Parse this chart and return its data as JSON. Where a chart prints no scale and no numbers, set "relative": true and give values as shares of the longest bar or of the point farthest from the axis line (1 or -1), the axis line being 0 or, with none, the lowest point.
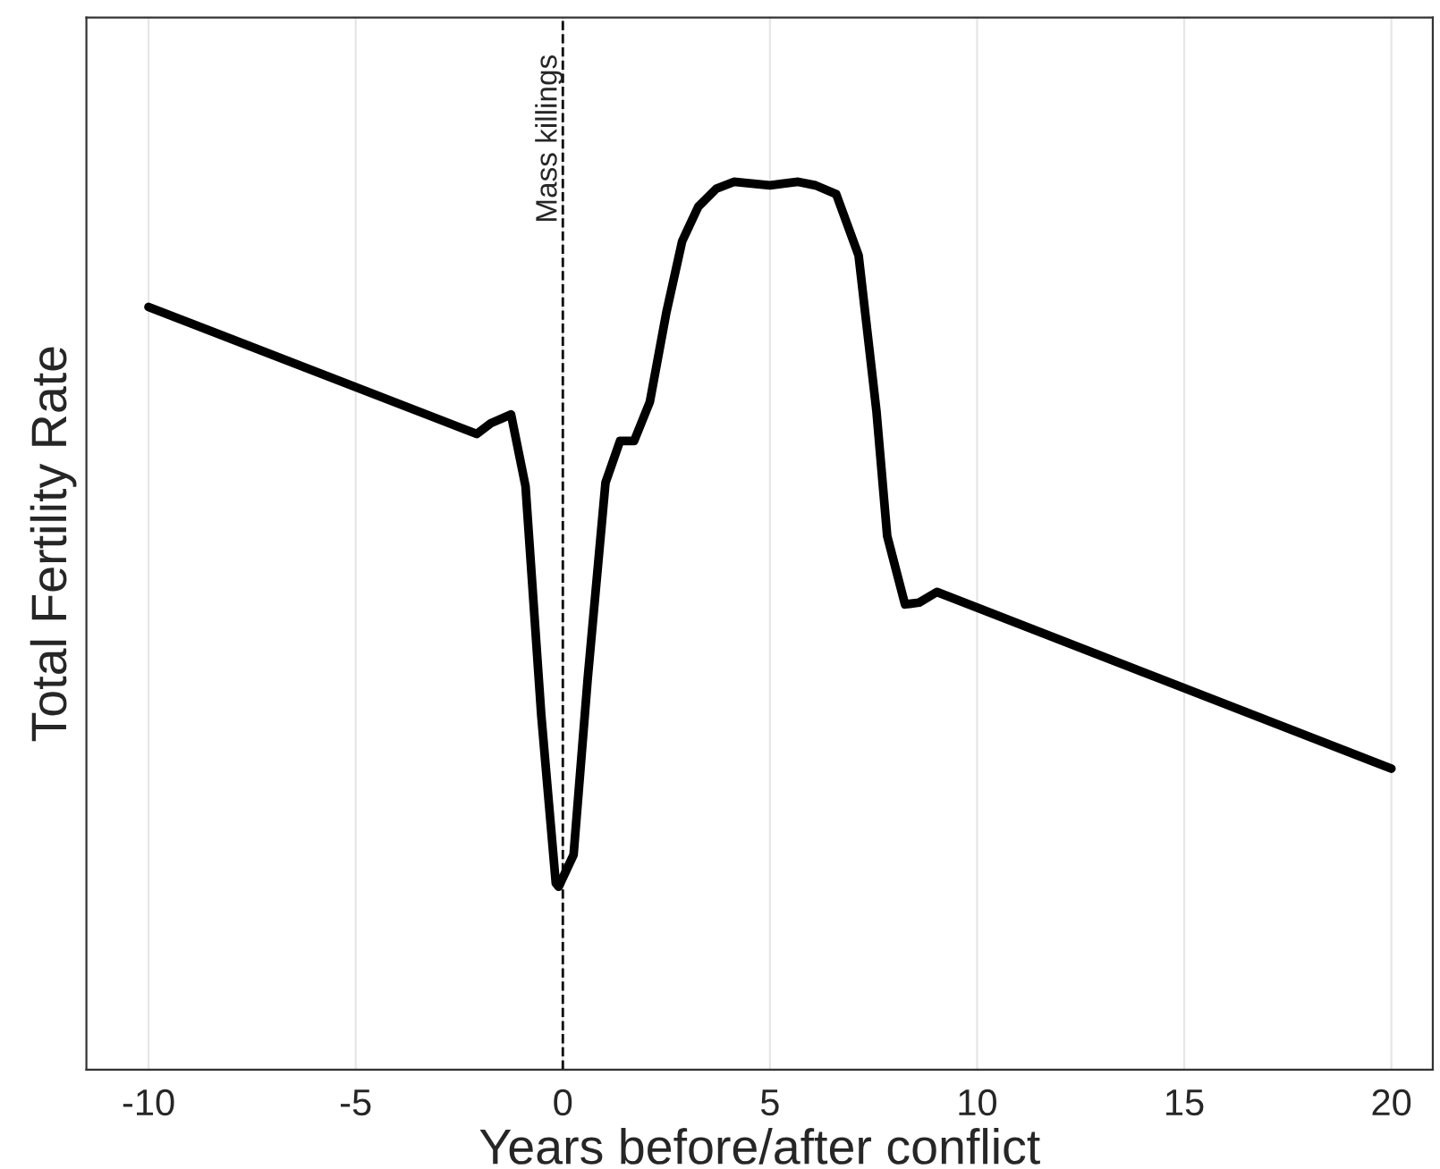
{
  "chart_data": {
    "type": "line",
    "relative": true,
    "xlabel": "Years before/after conflict",
    "ylabel": "Total Fertility Rate",
    "xlim": [
      -11.5,
      21
    ],
    "xticks": [
      -10,
      -5,
      0,
      5,
      10,
      15,
      20
    ],
    "grid": "x",
    "tick_labels": "x",
    "legend": false,
    "marker": "none",
    "line_style": "solid",
    "series": [
      {
        "color": "#000000",
        "x": [
          -10,
          -2.08,
          -1.74,
          -1.25,
          -0.9,
          -0.52,
          -0.17,
          -0.1,
          0.26,
          0.6,
          1.03,
          1.38,
          1.72,
          2.1,
          2.5,
          2.88,
          3.27,
          3.7,
          4.13,
          4.56,
          5.0,
          5.33,
          5.68,
          6.1,
          6.6,
          7.14,
          7.57,
          7.83,
          8.26,
          8.6,
          9.03,
          20
        ],
        "values": [
          0.859,
          0.716,
          0.728,
          0.738,
          0.657,
          0.399,
          0.21,
          0.206,
          0.242,
          0.44,
          0.661,
          0.708,
          0.708,
          0.752,
          0.853,
          0.933,
          0.972,
          0.992,
          1.0,
          0.998,
          0.996,
          0.998,
          1.0,
          0.996,
          0.986,
          0.917,
          0.742,
          0.601,
          0.524,
          0.526,
          0.538,
          0.339
        ]
      }
    ],
    "ref_lines": [
      {
        "axis": "x",
        "value": 0,
        "label": "Mass killings",
        "color": "#000000",
        "line_style": "dashed"
      }
    ]
  }
}
